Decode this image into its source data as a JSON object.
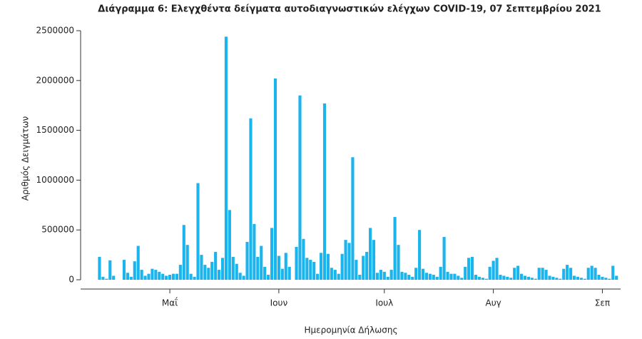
{
  "chart_data": {
    "type": "bar",
    "title": "Διάγραμμα 6: Ελεγχθέντα δείγματα αυτοδιαγνωστικών ελέγχων COVID-19, 07 Σεπτεμβρίου 2021",
    "x_label": "Ημερομηνία Δήλωσης",
    "y_label": "Αριθμός Δειγμάτων",
    "color": "#1cb4ec",
    "categories": [
      null,
      null,
      null,
      null,
      null,
      null,
      null,
      null,
      null,
      null,
      null,
      null,
      null,
      null,
      null,
      null,
      null,
      null,
      null,
      null,
      "Μαΐ",
      null,
      null,
      null,
      null,
      null,
      null,
      null,
      null,
      null,
      null,
      null,
      null,
      null,
      null,
      null,
      null,
      null,
      null,
      null,
      null,
      null,
      null,
      null,
      null,
      null,
      null,
      null,
      null,
      null,
      null,
      "Ιουν",
      null,
      null,
      null,
      null,
      null,
      null,
      null,
      null,
      null,
      null,
      null,
      null,
      null,
      null,
      null,
      null,
      null,
      null,
      null,
      null,
      null,
      null,
      null,
      null,
      null,
      null,
      null,
      null,
      null,
      "Ιουλ",
      null,
      null,
      null,
      null,
      null,
      null,
      null,
      null,
      null,
      null,
      null,
      null,
      null,
      null,
      null,
      null,
      null,
      null,
      null,
      null,
      null,
      null,
      null,
      null,
      null,
      null,
      null,
      null,
      null,
      null,
      "Αυγ",
      null,
      null,
      null,
      null,
      null,
      null,
      null,
      null,
      null,
      null,
      null,
      null,
      null,
      null,
      null,
      null,
      null,
      null,
      null,
      null,
      null,
      null,
      null,
      null,
      null,
      null,
      null,
      null,
      null,
      null,
      "Σεπ",
      null,
      null,
      null,
      null
    ],
    "values": [
      230000,
      30000,
      10000,
      195000,
      40000,
      0,
      0,
      200000,
      70000,
      30000,
      185000,
      340000,
      100000,
      40000,
      60000,
      110000,
      100000,
      80000,
      60000,
      40000,
      50000,
      60000,
      60000,
      150000,
      550000,
      350000,
      60000,
      30000,
      970000,
      250000,
      150000,
      120000,
      180000,
      280000,
      100000,
      220000,
      2440000,
      700000,
      230000,
      160000,
      70000,
      40000,
      380000,
      1620000,
      560000,
      230000,
      340000,
      130000,
      50000,
      520000,
      2020000,
      240000,
      110000,
      270000,
      130000,
      0,
      330000,
      1850000,
      410000,
      220000,
      200000,
      180000,
      60000,
      270000,
      1770000,
      260000,
      120000,
      100000,
      60000,
      260000,
      400000,
      370000,
      1230000,
      200000,
      50000,
      240000,
      280000,
      520000,
      400000,
      70000,
      100000,
      80000,
      30000,
      100000,
      630000,
      350000,
      80000,
      70000,
      50000,
      30000,
      120000,
      500000,
      110000,
      70000,
      60000,
      50000,
      30000,
      130000,
      430000,
      80000,
      60000,
      60000,
      40000,
      20000,
      130000,
      220000,
      230000,
      50000,
      30000,
      20000,
      10000,
      130000,
      190000,
      220000,
      50000,
      40000,
      30000,
      20000,
      120000,
      140000,
      60000,
      40000,
      30000,
      20000,
      10000,
      120000,
      120000,
      100000,
      40000,
      30000,
      20000,
      10000,
      110000,
      150000,
      120000,
      40000,
      30000,
      20000,
      10000,
      120000,
      140000,
      120000,
      50000,
      30000,
      20000,
      10000,
      140000,
      40000
    ],
    "ylim": [
      0,
      2500000
    ],
    "yticks": [
      0,
      500000,
      1000000,
      1500000,
      2000000,
      2500000
    ],
    "grid": false
  }
}
